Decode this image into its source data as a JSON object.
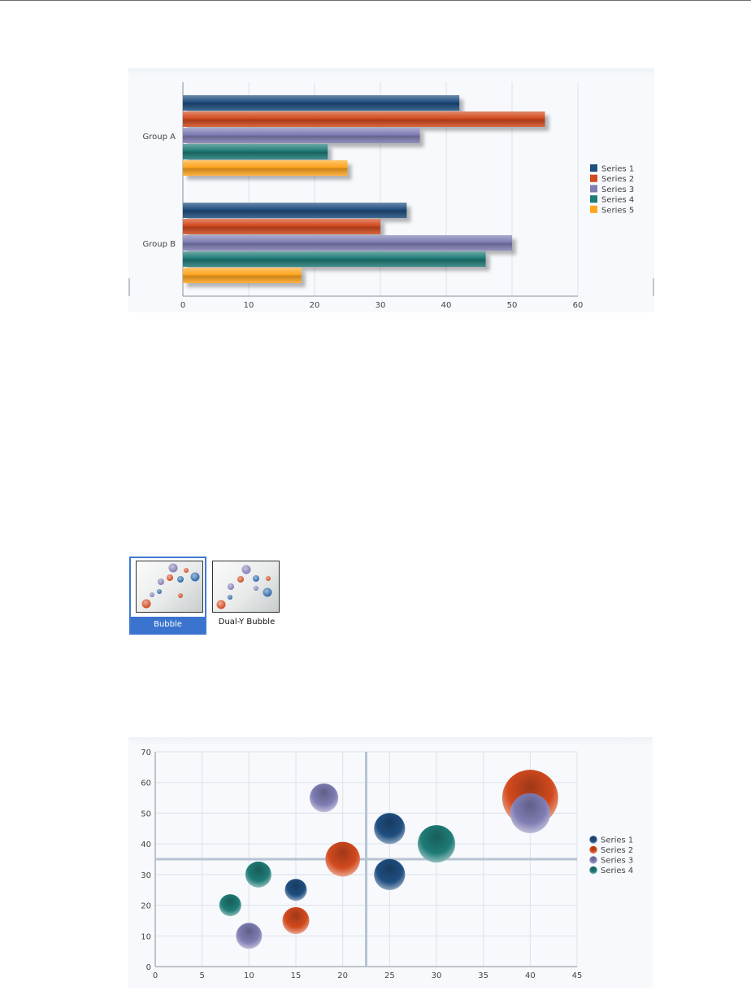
{
  "chart_data": [
    {
      "type": "bar",
      "orientation": "horizontal",
      "categories": [
        "Group A",
        "Group B"
      ],
      "series": [
        {
          "name": "Series 1",
          "values": [
            42,
            34
          ]
        },
        {
          "name": "Series 2",
          "values": [
            55,
            30
          ]
        },
        {
          "name": "Series 3",
          "values": [
            36,
            50
          ]
        },
        {
          "name": "Series 4",
          "values": [
            22,
            46
          ]
        },
        {
          "name": "Series 5",
          "values": [
            25,
            18
          ]
        }
      ],
      "xlim": [
        0,
        60
      ],
      "xticks": [
        "0",
        "10",
        "20",
        "30",
        "40",
        "50",
        "60"
      ],
      "grid": true,
      "legend": "right"
    },
    {
      "type": "scatter",
      "subtype": "bubble",
      "series": [
        {
          "name": "Series 1",
          "points": [
            {
              "x": 15,
              "y": 25,
              "size": 1
            },
            {
              "x": 25,
              "y": 45,
              "size": 2
            },
            {
              "x": 25,
              "y": 30,
              "size": 2
            }
          ]
        },
        {
          "name": "Series 2",
          "points": [
            {
              "x": 15,
              "y": 15,
              "size": 1.5
            },
            {
              "x": 20,
              "y": 35,
              "size": 2.5
            },
            {
              "x": 40,
              "y": 55,
              "size": 6.5
            }
          ]
        },
        {
          "name": "Series 3",
          "points": [
            {
              "x": 18,
              "y": 55,
              "size": 1.7
            },
            {
              "x": 10,
              "y": 10,
              "size": 1.4
            },
            {
              "x": 40,
              "y": 50,
              "size": 3.3
            }
          ]
        },
        {
          "name": "Series 4",
          "points": [
            {
              "x": 8,
              "y": 20,
              "size": 1
            },
            {
              "x": 11,
              "y": 30,
              "size": 1.4
            },
            {
              "x": 30,
              "y": 40,
              "size": 2.9
            }
          ]
        }
      ],
      "xlim": [
        0,
        45
      ],
      "ylim": [
        0,
        70
      ],
      "xticks": [
        "0",
        "5",
        "10",
        "15",
        "20",
        "25",
        "30",
        "35",
        "40",
        "45"
      ],
      "yticks": [
        "0",
        "10",
        "20",
        "30",
        "40",
        "50",
        "60",
        "70"
      ],
      "reference_lines": {
        "x": 22.5,
        "y": 35
      },
      "grid": true,
      "legend": "right"
    }
  ],
  "colors": {
    "series_1": "#1f4e80",
    "series_2": "#d24a1e",
    "series_3": "#7f7db3",
    "series_4": "#1f7b77",
    "series_5": "#ffa51f"
  },
  "chart_type_picker": {
    "options": [
      {
        "label": "Bubble",
        "selected": true
      },
      {
        "label": "Dual-Y Bubble",
        "selected": false
      }
    ]
  }
}
